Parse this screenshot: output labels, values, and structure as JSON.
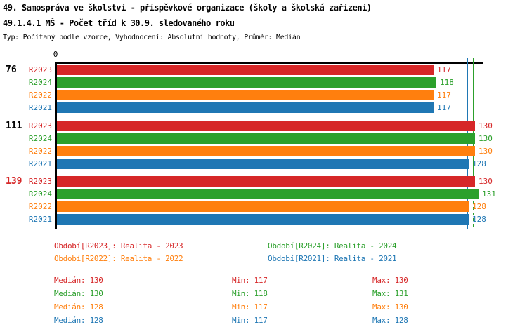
{
  "page": {
    "title_line1": "49. Samospráva ve školství - příspěvkové organizace (školy a školská zařízení)",
    "title_line2": "49.1.4.1 MŠ - Počet tříd k 30.9. sledovaného roku",
    "meta_line": "Typ: Počítaný podle vzorce, Vyhodnocení: Absolutní hodnoty, Průměr: Medián"
  },
  "chart_data": {
    "type": "bar",
    "orientation": "horizontal",
    "title": "49.1.4.1 MŠ - Počet tříd k 30.9. sledovaného roku",
    "x_axis": {
      "origin_label": "0",
      "min": 0,
      "max": 132,
      "visible_ticks": [
        "0"
      ]
    },
    "grid": false,
    "legend_position": "bottom",
    "categories": [
      "76",
      "111",
      "139"
    ],
    "category_label_colors": [
      "#000000",
      "#000000",
      "#d62728"
    ],
    "row_order": [
      "R2023",
      "R2024",
      "R2022",
      "R2021"
    ],
    "series": [
      {
        "id": "R2023",
        "color": "#d62728",
        "values": [
          117,
          130,
          130
        ],
        "median": 130,
        "min": 117,
        "max": 130
      },
      {
        "id": "R2024",
        "color": "#2ca02c",
        "values": [
          118,
          130,
          131
        ],
        "median": 130,
        "min": 118,
        "max": 131
      },
      {
        "id": "R2022",
        "color": "#ff7f0e",
        "values": [
          117,
          130,
          128
        ],
        "median": 128,
        "min": 117,
        "max": 130
      },
      {
        "id": "R2021",
        "color": "#1f77b4",
        "values": [
          117,
          128,
          128
        ],
        "median": 128,
        "min": 117,
        "max": 128
      }
    ],
    "median_lines": [
      {
        "series": "R2021",
        "value": 128,
        "color": "#1f77b4",
        "style": "solid"
      },
      {
        "series": "R2024",
        "value": 130,
        "color": "#2ca02c",
        "style": "solid-top-dashed-bottom"
      }
    ]
  },
  "legend": {
    "items": [
      {
        "id": "R2023",
        "label": "Období[R2023]: Realita - 2023",
        "color": "#d62728"
      },
      {
        "id": "R2024",
        "label": "Období[R2024]: Realita - 2024",
        "color": "#2ca02c"
      },
      {
        "id": "R2022",
        "label": "Období[R2022]: Realita - 2022",
        "color": "#ff7f0e"
      },
      {
        "id": "R2021",
        "label": "Období[R2021]: Realita - 2021",
        "color": "#1f77b4"
      }
    ]
  },
  "stats": {
    "median_label": "Medián",
    "min_label": "Min",
    "max_label": "Max",
    "rows": [
      {
        "id": "R2023",
        "color": "#d62728",
        "median": 130,
        "min": 117,
        "max": 130
      },
      {
        "id": "R2024",
        "color": "#2ca02c",
        "median": 130,
        "min": 118,
        "max": 131
      },
      {
        "id": "R2022",
        "color": "#ff7f0e",
        "median": 128,
        "min": 117,
        "max": 130
      },
      {
        "id": "R2021",
        "color": "#1f77b4",
        "median": 128,
        "min": 117,
        "max": 128
      }
    ]
  }
}
